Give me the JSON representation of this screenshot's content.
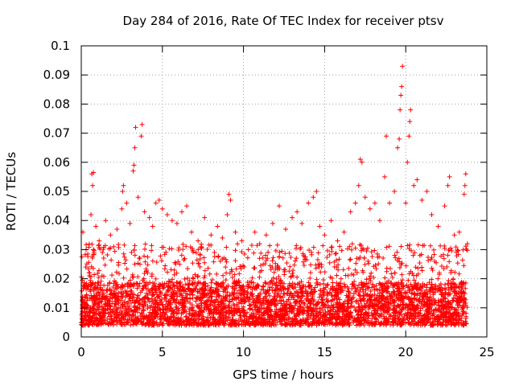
{
  "chart_data": {
    "type": "scatter",
    "title": "Day 284 of 2016, Rate Of TEC Index for receiver ptsv",
    "xlabel": "GPS time / hours",
    "ylabel": "ROTI / TECUs",
    "xlim": [
      0,
      25
    ],
    "ylim": [
      0,
      0.1
    ],
    "xticks": [
      0,
      5,
      10,
      15,
      20,
      25
    ],
    "xtick_labels": [
      "0",
      "5",
      "10",
      "15",
      "20",
      "25"
    ],
    "yticks": [
      0,
      0.01,
      0.02,
      0.03,
      0.04,
      0.05,
      0.06,
      0.07,
      0.08,
      0.09,
      0.1
    ],
    "ytick_labels": [
      "0",
      "0.01",
      "0.02",
      "0.03",
      "0.04",
      "0.05",
      "0.06",
      "0.07",
      "0.08",
      "0.09",
      "0.1"
    ],
    "grid": true,
    "marker": "+",
    "color": "#ff0000",
    "series": [
      {
        "name": "ROTI",
        "points": [
          [
            0.1,
            0.036
          ],
          [
            0.3,
            0.03
          ],
          [
            0.5,
            0.021
          ],
          [
            0.6,
            0.042
          ],
          [
            0.65,
            0.056
          ],
          [
            0.7,
            0.052
          ],
          [
            0.75,
            0.0565
          ],
          [
            0.9,
            0.038
          ],
          [
            1.1,
            0.033
          ],
          [
            1.3,
            0.029
          ],
          [
            1.5,
            0.04
          ],
          [
            1.8,
            0.035
          ],
          [
            2.0,
            0.031
          ],
          [
            2.2,
            0.037
          ],
          [
            2.5,
            0.044
          ],
          [
            2.55,
            0.05
          ],
          [
            2.6,
            0.052
          ],
          [
            2.8,
            0.046
          ],
          [
            3.0,
            0.039
          ],
          [
            3.2,
            0.057
          ],
          [
            3.25,
            0.059
          ],
          [
            3.3,
            0.065
          ],
          [
            3.35,
            0.072
          ],
          [
            3.5,
            0.048
          ],
          [
            3.7,
            0.069
          ],
          [
            3.75,
            0.073
          ],
          [
            3.9,
            0.043
          ],
          [
            4.2,
            0.041
          ],
          [
            4.4,
            0.038
          ],
          [
            4.6,
            0.046
          ],
          [
            4.8,
            0.047
          ],
          [
            5.0,
            0.044
          ],
          [
            5.3,
            0.042
          ],
          [
            5.6,
            0.04
          ],
          [
            5.9,
            0.039
          ],
          [
            6.2,
            0.043
          ],
          [
            6.5,
            0.045
          ],
          [
            6.8,
            0.036
          ],
          [
            7.2,
            0.033
          ],
          [
            7.6,
            0.041
          ],
          [
            8.0,
            0.035
          ],
          [
            8.4,
            0.038
          ],
          [
            8.7,
            0.034
          ],
          [
            9.0,
            0.042
          ],
          [
            9.1,
            0.049
          ],
          [
            9.2,
            0.047
          ],
          [
            9.5,
            0.036
          ],
          [
            9.9,
            0.033
          ],
          [
            10.3,
            0.03
          ],
          [
            10.7,
            0.036
          ],
          [
            11.0,
            0.032
          ],
          [
            11.4,
            0.035
          ],
          [
            11.8,
            0.039
          ],
          [
            12.2,
            0.045
          ],
          [
            12.6,
            0.037
          ],
          [
            13.0,
            0.041
          ],
          [
            13.3,
            0.043
          ],
          [
            13.6,
            0.039
          ],
          [
            14.0,
            0.046
          ],
          [
            14.3,
            0.048
          ],
          [
            14.5,
            0.05
          ],
          [
            14.7,
            0.038
          ],
          [
            15.0,
            0.035
          ],
          [
            15.4,
            0.04
          ],
          [
            15.8,
            0.033
          ],
          [
            16.2,
            0.036
          ],
          [
            16.6,
            0.043
          ],
          [
            16.9,
            0.046
          ],
          [
            17.1,
            0.052
          ],
          [
            17.2,
            0.061
          ],
          [
            17.3,
            0.06
          ],
          [
            17.5,
            0.048
          ],
          [
            17.8,
            0.044
          ],
          [
            18.1,
            0.046
          ],
          [
            18.4,
            0.04
          ],
          [
            18.7,
            0.055
          ],
          [
            18.8,
            0.069
          ],
          [
            19.0,
            0.046
          ],
          [
            19.3,
            0.05
          ],
          [
            19.5,
            0.065
          ],
          [
            19.6,
            0.068
          ],
          [
            19.65,
            0.078
          ],
          [
            19.7,
            0.083
          ],
          [
            19.75,
            0.086
          ],
          [
            19.8,
            0.093
          ],
          [
            20.0,
            0.046
          ],
          [
            20.1,
            0.06
          ],
          [
            20.2,
            0.069
          ],
          [
            20.25,
            0.074
          ],
          [
            20.3,
            0.078
          ],
          [
            20.5,
            0.052
          ],
          [
            20.7,
            0.054
          ],
          [
            21.0,
            0.047
          ],
          [
            21.3,
            0.05
          ],
          [
            21.6,
            0.042
          ],
          [
            22.0,
            0.038
          ],
          [
            22.4,
            0.045
          ],
          [
            22.6,
            0.052
          ],
          [
            22.7,
            0.055
          ],
          [
            23.0,
            0.035
          ],
          [
            23.3,
            0.036
          ],
          [
            23.6,
            0.049
          ],
          [
            23.65,
            0.052
          ],
          [
            23.7,
            0.056
          ],
          [
            23.8,
            0.032
          ]
        ],
        "dense_band": {
          "x_range": [
            0,
            23.8
          ],
          "median": 0.012,
          "lower": 0.002,
          "upper_typical": 0.03,
          "description_count": 4000
        }
      }
    ]
  }
}
